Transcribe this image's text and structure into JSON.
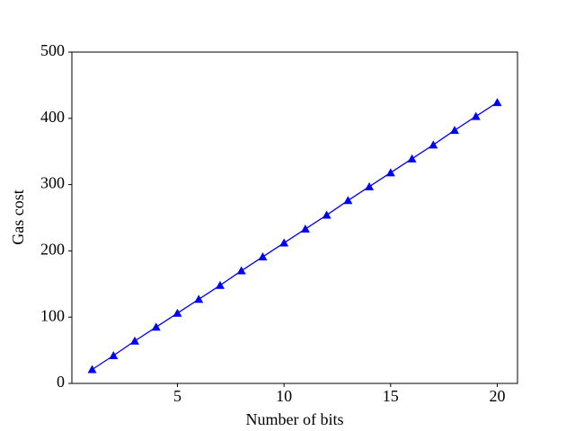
{
  "chart_data": {
    "type": "line",
    "xlabel": "Number of bits",
    "ylabel": "Gas cost",
    "x": [
      1,
      2,
      3,
      4,
      5,
      6,
      7,
      8,
      9,
      10,
      11,
      12,
      13,
      14,
      15,
      16,
      17,
      18,
      19,
      20
    ],
    "series": [
      {
        "color": "#0000ff",
        "marker": "triangle",
        "values": [
          21,
          42,
          64,
          85,
          106,
          127,
          148,
          170,
          191,
          212,
          233,
          254,
          276,
          297,
          318,
          339,
          360,
          382,
          403,
          424
        ]
      }
    ],
    "xlim": [
      0.05,
      20.95
    ],
    "xticks": [
      5,
      10,
      15,
      20
    ],
    "ylim": [
      0,
      500
    ],
    "yticks": [
      0,
      100,
      200,
      300,
      400,
      500
    ]
  }
}
